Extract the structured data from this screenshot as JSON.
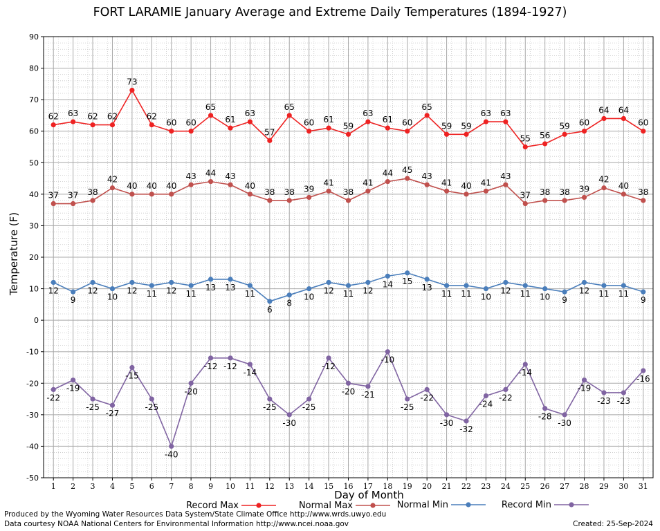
{
  "chart_data": {
    "type": "line",
    "title": "FORT LARAMIE January Average and Extreme Daily Temperatures (1894-1927)",
    "xlabel": "Day of Month",
    "ylabel": "Temperature (F)",
    "ylim": [
      -50,
      90
    ],
    "yticks": [
      "90",
      "80",
      "70",
      "60",
      "50",
      "40",
      "30",
      "20",
      "10",
      "0",
      "-10",
      "-20",
      "-30",
      "-40",
      "-50"
    ],
    "xlim": [
      0.5,
      31.5
    ],
    "x": [
      1,
      2,
      3,
      4,
      5,
      6,
      7,
      8,
      9,
      10,
      11,
      12,
      13,
      14,
      15,
      16,
      17,
      18,
      19,
      20,
      21,
      22,
      23,
      24,
      25,
      26,
      27,
      28,
      29,
      30,
      31
    ],
    "grid": true,
    "legend_position": "bottom",
    "series": [
      {
        "name": "Record Max",
        "color": "#ee2222",
        "values": [
          62,
          63,
          62,
          62,
          73,
          62,
          60,
          60,
          65,
          61,
          63,
          57,
          65,
          60,
          61,
          59,
          63,
          61,
          60,
          65,
          59,
          59,
          63,
          63,
          55,
          56,
          59,
          60,
          64,
          64,
          60
        ]
      },
      {
        "name": "Normal Max",
        "color": "#c0504d",
        "values": [
          37,
          37,
          38,
          42,
          40,
          40,
          40,
          43,
          44,
          43,
          40,
          38,
          38,
          39,
          41,
          38,
          41,
          44,
          45,
          43,
          41,
          40,
          41,
          43,
          37,
          38,
          38,
          39,
          42,
          40,
          38
        ]
      },
      {
        "name": "Normal Min",
        "color": "#4a7ebb",
        "values": [
          12,
          9,
          12,
          10,
          12,
          11,
          12,
          11,
          13,
          13,
          11,
          6,
          8,
          10,
          12,
          11,
          12,
          14,
          15,
          13,
          11,
          11,
          10,
          12,
          11,
          10,
          9,
          12,
          11,
          11,
          9
        ]
      },
      {
        "name": "Record Min",
        "color": "#8064a2",
        "values": [
          -22,
          -19,
          -25,
          -27,
          -15,
          -25,
          -40,
          -20,
          -12,
          -12,
          -14,
          -25,
          -30,
          -25,
          -12,
          -20,
          -21,
          -10,
          -25,
          -22,
          -30,
          -32,
          -24,
          -22,
          -14,
          -28,
          -30,
          -19,
          -23,
          -23,
          -16
        ]
      }
    ]
  },
  "footer": {
    "credit_line1": "Produced by the Wyoming Water Resources Data System/State Climate Office http://www.wrds.uwyo.edu",
    "credit_line2": "Data courtesy NOAA National Centers for Environmental Information http://www.ncei.noaa.gov",
    "created": "Created:  25-Sep-2024"
  }
}
